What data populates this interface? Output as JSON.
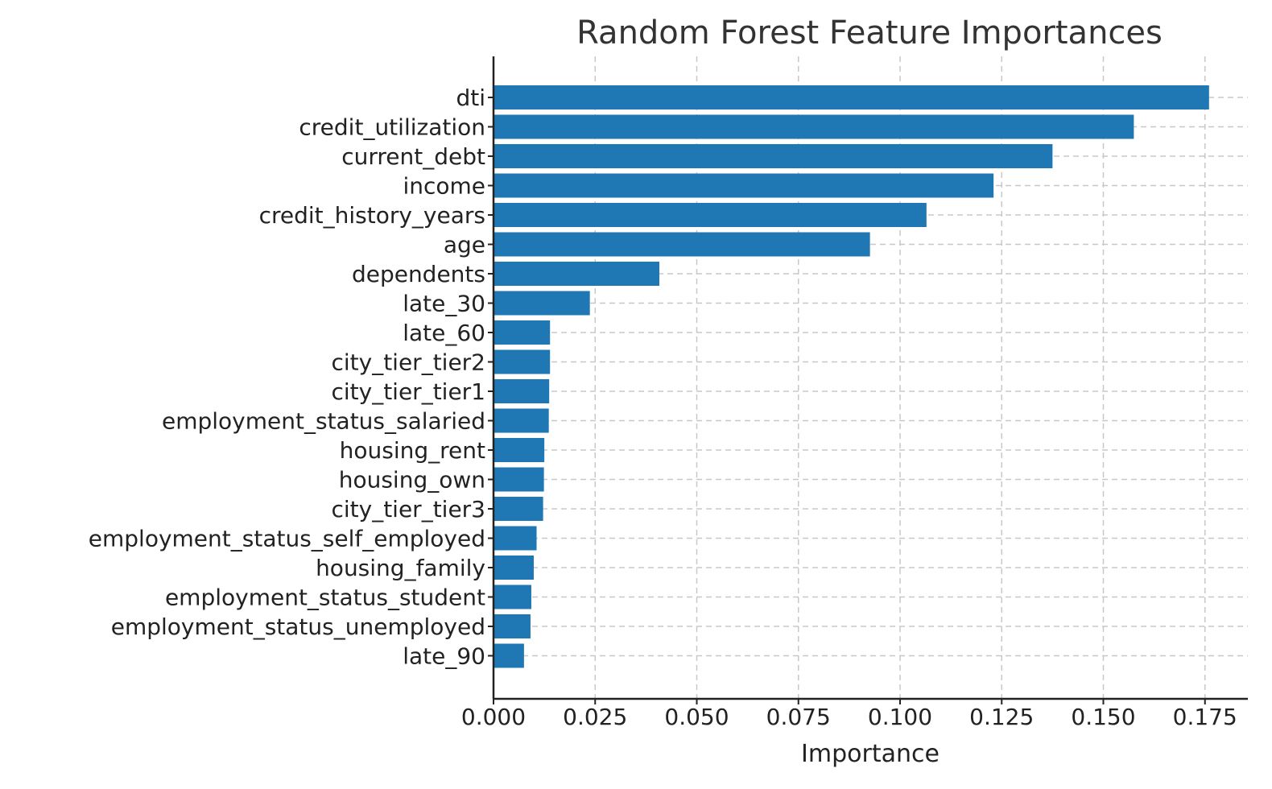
{
  "chart_data": {
    "type": "bar",
    "orientation": "horizontal",
    "title": "Random Forest Feature Importances",
    "xlabel": "Importance",
    "ylabel": "",
    "xlim": [
      0,
      0.185
    ],
    "xticks": [
      "0.000",
      "0.025",
      "0.050",
      "0.075",
      "0.100",
      "0.125",
      "0.150",
      "0.175"
    ],
    "grid": true,
    "bar_color": "#1f77b4",
    "categories": [
      "dti",
      "credit_utilization",
      "current_debt",
      "income",
      "credit_history_years",
      "age",
      "dependents",
      "late_30",
      "late_60",
      "city_tier_tier2",
      "city_tier_tier1",
      "employment_status_salaried",
      "housing_rent",
      "housing_own",
      "city_tier_tier3",
      "employment_status_self_employed",
      "housing_family",
      "employment_status_student",
      "employment_status_unemployed",
      "late_90"
    ],
    "values": [
      0.176,
      0.1575,
      0.1375,
      0.123,
      0.1065,
      0.0926,
      0.0408,
      0.0237,
      0.0139,
      0.0139,
      0.0137,
      0.0136,
      0.0125,
      0.0124,
      0.0122,
      0.0106,
      0.0099,
      0.0093,
      0.0091,
      0.0075
    ]
  }
}
